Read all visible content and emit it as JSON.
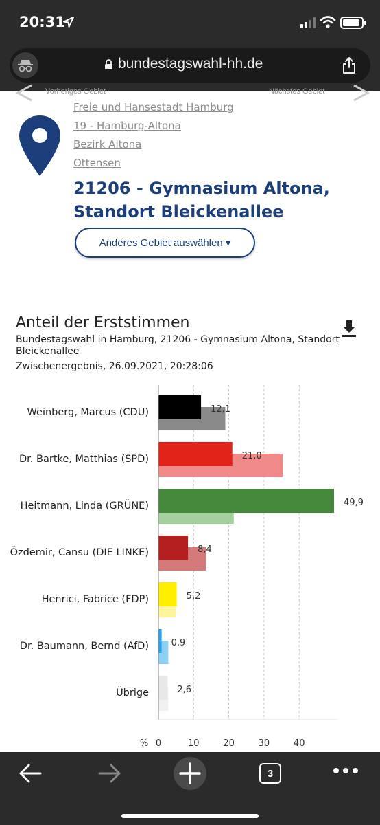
{
  "status_bar": {
    "time": "20:31"
  },
  "browser": {
    "url": "bundestagswahl-hh.de"
  },
  "nav": {
    "prev_label": "Vorheriges Gebiet",
    "next_label": "Nächstes Gebiet"
  },
  "breadcrumbs": [
    "Freie und Hansestadt Hamburg",
    "19 - Hamburg-Altona",
    "Bezirk Altona",
    "Ottensen"
  ],
  "area": {
    "title_line1": "21206 - Gymnasium Altona,",
    "title_line2": "Standort Bleickenallee",
    "select_button": "Anderes Gebiet auswählen ▾"
  },
  "chart_header": {
    "title": "Anteil der Erststimmen",
    "subtitle": "Bundestagswahl in Hamburg, 21206 - Gymnasium Altona, Standort Bleickenallee",
    "timestamp": "Zwischenergebnis, 26.09.2021, 20:28:06"
  },
  "chart_data": {
    "type": "bar",
    "orientation": "horizontal",
    "categories": [
      "Weinberg, Marcus (CDU)",
      "Dr. Bartke, Matthias (SPD)",
      "Heitmann, Linda (GRÜNE)",
      "Özdemir, Cansu (DIE LINKE)",
      "Henrici, Fabrice (FDP)",
      "Dr. Baumann, Bernd (AfD)",
      "Übrige"
    ],
    "series": [
      {
        "values": [
          12.1,
          21.0,
          49.9,
          8.4,
          5.2,
          0.9,
          2.6
        ]
      },
      {
        "values": [
          19.0,
          35.3,
          21.4,
          13.5,
          4.9,
          2.8,
          2.8
        ]
      }
    ],
    "value_labels": [
      "12,1",
      "21,0",
      "49,9",
      "8,4",
      "5,2",
      "0,9",
      "2,6"
    ],
    "colors": [
      "#000000",
      "#e2231a",
      "#46883c",
      "#b41e1e",
      "#ffed00",
      "#2aa4e8",
      "#e8e8e8"
    ],
    "prev_colors": [
      "#8a8a8a",
      "#ef8a88",
      "#a6cfa0",
      "#d57a7a",
      "#fff59a",
      "#8ecff5",
      "#f0f0f0"
    ],
    "x_unit": "%",
    "x_ticks": [
      0,
      10,
      20,
      30,
      40
    ],
    "xlim": [
      0,
      50
    ],
    "grid": true
  },
  "toolbar": {
    "tab_count": "3"
  }
}
